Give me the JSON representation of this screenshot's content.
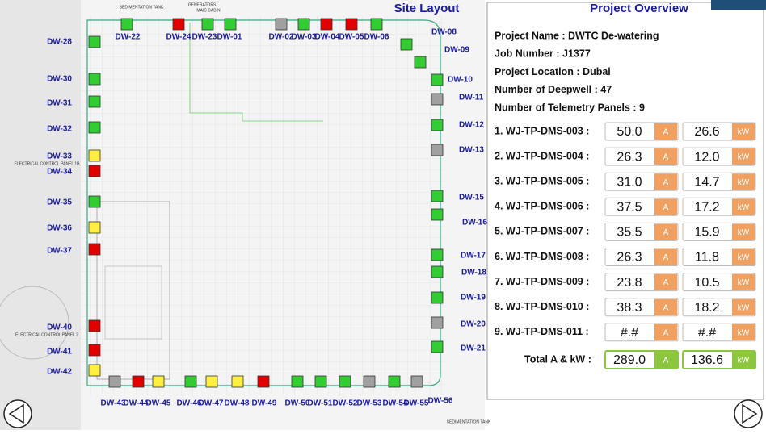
{
  "site_layout": {
    "title": "Site Layout",
    "map_labels": [
      "SEDIMENTATION TANK",
      "GENERATORS",
      "MAIC CABIN",
      "ELECTRICAL CONTROL PANEL 1B",
      "ELECTRICAL CONTROL PANEL 2",
      "SEDIMENTATION TANK"
    ],
    "wells": [
      {
        "label": "DW-22",
        "color": "#33cc33"
      },
      {
        "label": "DW-24",
        "color": "#e00000"
      },
      {
        "label": "DW-23",
        "color": "#33cc33"
      },
      {
        "label": "DW-01",
        "color": "#33cc33"
      },
      {
        "label": "DW-02",
        "color": "#a0a0a0"
      },
      {
        "label": "DW-03",
        "color": "#33cc33"
      },
      {
        "label": "DW-04",
        "color": "#e00000"
      },
      {
        "label": "DW-05",
        "color": "#e00000"
      },
      {
        "label": "DW-06",
        "color": "#33cc33"
      },
      {
        "label": "DW-08",
        "color": "#33cc33"
      },
      {
        "label": "DW-09",
        "color": "#33cc33"
      },
      {
        "label": "DW-10",
        "color": "#33cc33"
      },
      {
        "label": "DW-11",
        "color": "#a0a0a0"
      },
      {
        "label": "DW-12",
        "color": "#33cc33"
      },
      {
        "label": "DW-13",
        "color": "#a0a0a0"
      },
      {
        "label": "DW-15",
        "color": "#33cc33"
      },
      {
        "label": "DW-16",
        "color": "#33cc33"
      },
      {
        "label": "DW-17",
        "color": "#33cc33"
      },
      {
        "label": "DW-18",
        "color": "#33cc33"
      },
      {
        "label": "DW-19",
        "color": "#33cc33"
      },
      {
        "label": "DW-20",
        "color": "#a0a0a0"
      },
      {
        "label": "DW-21",
        "color": "#33cc33"
      },
      {
        "label": "DW-43",
        "color": "#a0a0a0"
      },
      {
        "label": "DW-44",
        "color": "#e00000"
      },
      {
        "label": "DW-45",
        "color": "#ffee44"
      },
      {
        "label": "DW-46",
        "color": "#33cc33"
      },
      {
        "label": "DW-47",
        "color": "#ffee44"
      },
      {
        "label": "DW-48",
        "color": "#ffee44"
      },
      {
        "label": "DW-49",
        "color": "#e00000"
      },
      {
        "label": "DW-50",
        "color": "#33cc33"
      },
      {
        "label": "DW-51",
        "color": "#33cc33"
      },
      {
        "label": "DW-52",
        "color": "#33cc33"
      },
      {
        "label": "DW-53",
        "color": "#a0a0a0"
      },
      {
        "label": "DW-54",
        "color": "#33cc33"
      },
      {
        "label": "DW-55",
        "color": "#a0a0a0"
      },
      {
        "label": "DW-56",
        "color": null
      },
      {
        "label": "DW-28",
        "color": "#33cc33"
      },
      {
        "label": "DW-30",
        "color": "#33cc33"
      },
      {
        "label": "DW-31",
        "color": "#33cc33"
      },
      {
        "label": "DW-32",
        "color": "#33cc33"
      },
      {
        "label": "DW-33",
        "color": "#ffee44"
      },
      {
        "label": "DW-34",
        "color": "#e00000"
      },
      {
        "label": "DW-35",
        "color": "#33cc33"
      },
      {
        "label": "DW-36",
        "color": "#ffee44"
      },
      {
        "label": "DW-37",
        "color": "#e00000"
      },
      {
        "label": "DW-40",
        "color": "#e00000"
      },
      {
        "label": "DW-41",
        "color": "#e00000"
      },
      {
        "label": "DW-42",
        "color": "#ffee44"
      }
    ]
  },
  "overview": {
    "title": "Project Overview",
    "info": [
      "Project Name : DWTC De-watering",
      "Job Number : J1377",
      "Project Location : Dubai",
      "Number of Deepwell : 47",
      "Number of Telemetry Panels : 9"
    ],
    "current_unit": "A",
    "power_unit": "kW",
    "panels": [
      {
        "name": "1. WJ-TP-DMS-003 :",
        "current": "50.0",
        "power": "26.6"
      },
      {
        "name": "2. WJ-TP-DMS-004 :",
        "current": "26.3",
        "power": "12.0"
      },
      {
        "name": "3. WJ-TP-DMS-005 :",
        "current": "31.0",
        "power": "14.7"
      },
      {
        "name": "4. WJ-TP-DMS-006 :",
        "current": "37.5",
        "power": "17.2"
      },
      {
        "name": "5. WJ-TP-DMS-007 :",
        "current": "35.5",
        "power": "15.9"
      },
      {
        "name": "6. WJ-TP-DMS-008 :",
        "current": "26.3",
        "power": "11.8"
      },
      {
        "name": "7. WJ-TP-DMS-009 :",
        "current": "23.8",
        "power": "10.5"
      },
      {
        "name": "8. WJ-TP-DMS-010 :",
        "current": "38.3",
        "power": "18.2"
      },
      {
        "name": "9. WJ-TP-DMS-011 :",
        "current": "#.#",
        "power": "#.#"
      }
    ],
    "total": {
      "name": "Total A & kW :",
      "current": "289.0",
      "power": "136.6"
    }
  }
}
